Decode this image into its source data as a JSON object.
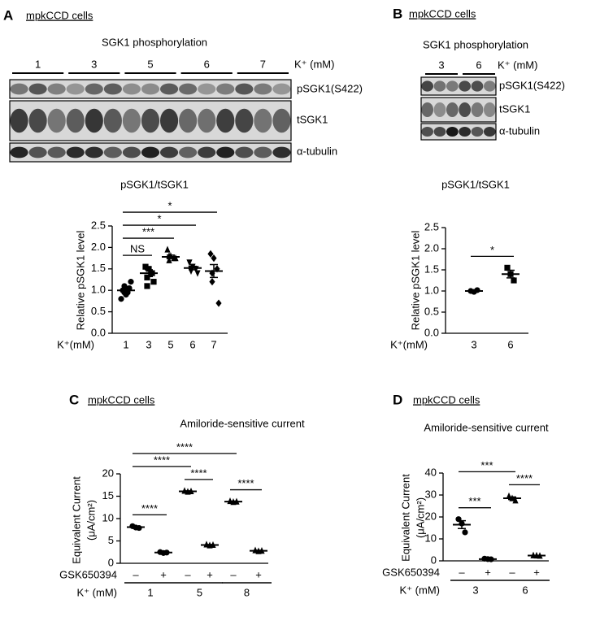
{
  "panels": [
    {
      "letter": "A",
      "cell_line": "mpkCCD cells",
      "blot_title": "SGK1 phosphorylation",
      "lane_groups": [
        "1",
        "3",
        "5",
        "6",
        "7"
      ],
      "unit_label": "K⁺ (mM)",
      "blot_rows": [
        "pSGK1(S422)",
        "tSGK1",
        "α-tubulin"
      ]
    },
    {
      "letter": "B",
      "cell_line": "mpkCCD cells",
      "blot_title": "SGK1 phosphorylation",
      "lane_groups": [
        "3",
        "6"
      ],
      "unit_label": "K⁺ (mM)",
      "blot_rows": [
        "pSGK1(S422)",
        "tSGK1",
        "α-tubulin"
      ]
    },
    {
      "letter": "C",
      "cell_line": "mpkCCD cells"
    },
    {
      "letter": "D",
      "cell_line": "mpkCCD cells"
    }
  ],
  "chart_data": [
    {
      "type": "dot",
      "title": "pSGK1/tSGK1",
      "ylabel": [
        "Relative pSGK1 level"
      ],
      "x_label": "K⁺(mM)",
      "categories": [
        "1",
        "3",
        "5",
        "6",
        "7"
      ],
      "points": [
        [
          1.0,
          0.9,
          1.05,
          1.1,
          0.95,
          1.2,
          0.8,
          1.0,
          0.95
        ],
        [
          1.55,
          1.5,
          1.4,
          1.3,
          1.1,
          1.2
        ],
        [
          1.95,
          1.8,
          1.75,
          1.7,
          1.8,
          1.75
        ],
        [
          1.65,
          1.55,
          1.5,
          1.5,
          1.45,
          1.4
        ],
        [
          1.85,
          1.75,
          1.5,
          1.4,
          1.2,
          0.7
        ]
      ],
      "means": [
        1.0,
        1.4,
        1.78,
        1.52,
        1.45
      ],
      "sems": [
        0.05,
        0.08,
        0.04,
        0.04,
        0.15
      ],
      "markers": [
        "circle",
        "square",
        "triangle",
        "triangle-down",
        "diamond"
      ],
      "ylim": [
        0,
        2.5
      ],
      "yticks": [
        {
          "value": 0,
          "label": "0.0"
        },
        0.5,
        {
          "value": 1,
          "label": "1.0"
        },
        1.5,
        {
          "value": 2,
          "label": "2.0"
        },
        2.5
      ],
      "annotations": [
        {
          "from": 0,
          "to": 1,
          "label": "NS"
        },
        {
          "from": 0,
          "to": 2,
          "label": "***"
        },
        {
          "from": 0,
          "to": 3,
          "label": "*"
        },
        {
          "from": 0,
          "to": 4,
          "label": "*"
        }
      ]
    },
    {
      "type": "dot",
      "title": "pSGK1/tSGK1",
      "ylabel": [
        "Relative pSGK1 level"
      ],
      "x_label": "K⁺(mM)",
      "categories": [
        "3",
        "6"
      ],
      "points": [
        [
          1.0,
          0.98,
          1.02
        ],
        [
          1.55,
          1.4,
          1.25
        ]
      ],
      "means": [
        1.0,
        1.4
      ],
      "sems": [
        0.01,
        0.09
      ],
      "markers": [
        "circle",
        "square"
      ],
      "ylim": [
        0,
        2.5
      ],
      "yticks": [
        {
          "value": 0,
          "label": "0.0"
        },
        0.5,
        {
          "value": 1,
          "label": "1.0"
        },
        1.5,
        {
          "value": 2,
          "label": "2.0"
        },
        2.5
      ],
      "annotations": [
        {
          "from": 0,
          "to": 1,
          "label": "*"
        }
      ]
    },
    {
      "type": "dot",
      "title": "Amiloride-sensitive current",
      "ylabel": [
        "Equivalent Current",
        "(μA/cm²)"
      ],
      "treatment_label": "GSK650394",
      "categories": [
        "–",
        "+",
        "–",
        "+",
        "–",
        "+"
      ],
      "group_label": "K⁺ (mM)",
      "groups": [
        "1",
        "5",
        "8"
      ],
      "points": [
        [
          8.3,
          8.0,
          7.9
        ],
        [
          2.5,
          2.3,
          2.4
        ],
        [
          16.2,
          16.0,
          16.1
        ],
        [
          4.2,
          4.0,
          4.1
        ],
        [
          13.9,
          13.7,
          13.8
        ],
        [
          2.9,
          2.7,
          2.8
        ]
      ],
      "means": [
        8.1,
        2.4,
        16.1,
        4.1,
        13.8,
        2.8
      ],
      "sems": [
        0.15,
        0.1,
        0.1,
        0.1,
        0.1,
        0.1
      ],
      "markers": [
        "circle",
        "circle",
        "triangle",
        "triangle",
        "triangle",
        "triangle"
      ],
      "ylim": [
        0,
        20
      ],
      "yticks": [
        0,
        5,
        10,
        15,
        20
      ],
      "annotations": [
        {
          "from": 0,
          "to": 1,
          "label": "****"
        },
        {
          "from": 2,
          "to": 3,
          "label": "****"
        },
        {
          "from": 4,
          "to": 5,
          "label": "****"
        },
        {
          "from": 0,
          "to": 2,
          "label": "****"
        },
        {
          "from": 0,
          "to": 4,
          "label": "****"
        }
      ]
    },
    {
      "type": "dot",
      "title": "Amiloride-sensitive current",
      "ylabel": [
        "Equivalent Current",
        "(μA/cm²)"
      ],
      "treatment_label": "GSK650394",
      "categories": [
        "–",
        "+",
        "–",
        "+"
      ],
      "group_label": "K⁺ (mM)",
      "groups": [
        "3",
        "6"
      ],
      "points": [
        [
          19,
          17,
          13
        ],
        [
          1.0,
          0.8,
          0.7
        ],
        [
          29.5,
          28.5,
          27.5
        ],
        [
          2.5,
          2.4,
          2.3
        ]
      ],
      "means": [
        16.5,
        0.8,
        28.5,
        2.4
      ],
      "sems": [
        1.8,
        0.1,
        0.6,
        0.1
      ],
      "markers": [
        "circle",
        "circle",
        "triangle",
        "triangle"
      ],
      "ylim": [
        0,
        40
      ],
      "yticks": [
        0,
        10,
        20,
        30,
        40
      ],
      "annotations": [
        {
          "from": 0,
          "to": 1,
          "label": "***"
        },
        {
          "from": 2,
          "to": 3,
          "label": "****"
        },
        {
          "from": 0,
          "to": 2,
          "label": "***"
        }
      ]
    }
  ]
}
